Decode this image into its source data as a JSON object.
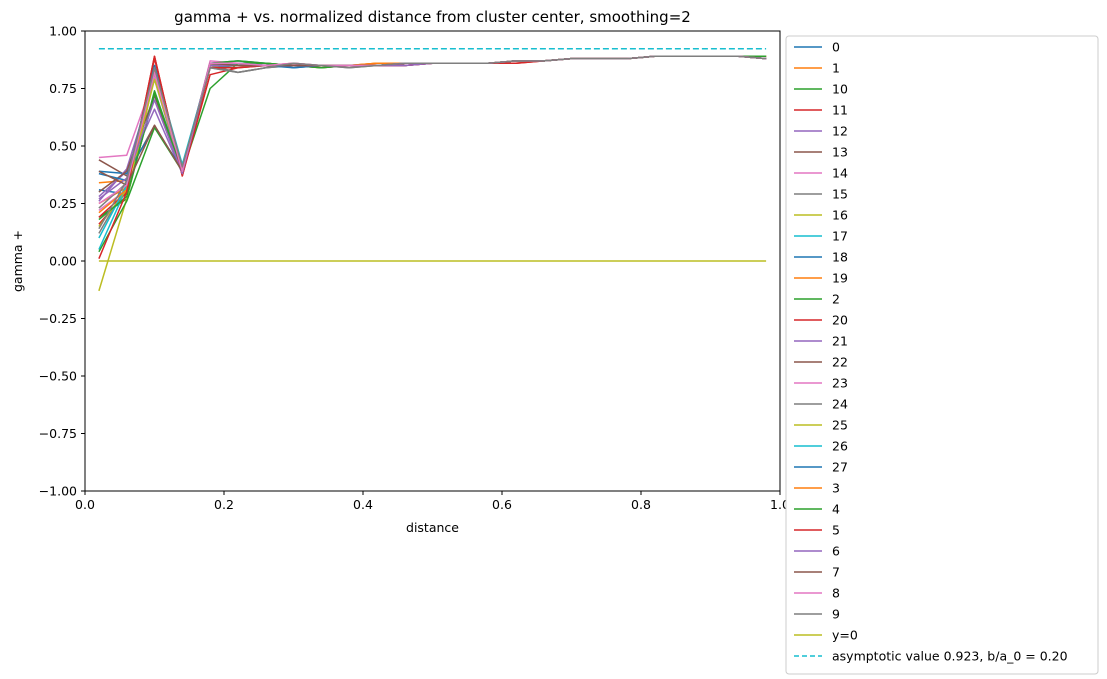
{
  "chart_data": {
    "type": "line",
    "title": "gamma + vs. normalized distance from cluster center, smoothing=2",
    "xlabel": "distance",
    "ylabel": "gamma +",
    "xlim": [
      0,
      1.0
    ],
    "ylim": [
      -1.0,
      1.0
    ],
    "xticks": [
      "0.0",
      "0.2",
      "0.4",
      "0.6",
      "0.8",
      "1.0"
    ],
    "yticks": [
      "−1.00",
      "−0.75",
      "−0.50",
      "−0.25",
      "0.00",
      "0.25",
      "0.50",
      "0.75",
      "1.00"
    ],
    "legend_position": "outside-right",
    "x": [
      0.02,
      0.06,
      0.1,
      0.14,
      0.18,
      0.22,
      0.26,
      0.3,
      0.34,
      0.38,
      0.42,
      0.46,
      0.5,
      0.54,
      0.58,
      0.62,
      0.66,
      0.7,
      0.74,
      0.78,
      0.82,
      0.86,
      0.9,
      0.94,
      0.98
    ],
    "series": [
      {
        "name": "0",
        "color": "#1f77b4",
        "values": [
          0.31,
          0.29,
          0.72,
          0.41,
          0.84,
          0.85,
          0.85,
          0.85,
          0.85,
          0.85,
          0.85,
          0.85,
          0.86,
          0.86,
          0.86,
          0.87,
          0.87,
          0.88,
          0.88,
          0.88,
          0.89,
          0.89,
          0.89,
          0.89,
          0.88
        ]
      },
      {
        "name": "1",
        "color": "#ff7f0e",
        "values": [
          0.34,
          0.35,
          0.82,
          0.4,
          0.86,
          0.85,
          0.85,
          0.85,
          0.84,
          0.85,
          0.86,
          0.86,
          0.86,
          0.86,
          0.86,
          0.87,
          0.87,
          0.88,
          0.88,
          0.88,
          0.89,
          0.89,
          0.89,
          0.89,
          0.89
        ]
      },
      {
        "name": "10",
        "color": "#2ca02c",
        "values": [
          0.19,
          0.27,
          0.74,
          0.39,
          0.85,
          0.86,
          0.86,
          0.85,
          0.84,
          0.85,
          0.85,
          0.86,
          0.86,
          0.86,
          0.86,
          0.87,
          0.87,
          0.88,
          0.88,
          0.88,
          0.89,
          0.89,
          0.89,
          0.89,
          0.89
        ]
      },
      {
        "name": "11",
        "color": "#d62728",
        "values": [
          0.16,
          0.3,
          0.88,
          0.38,
          0.86,
          0.85,
          0.85,
          0.86,
          0.85,
          0.85,
          0.85,
          0.86,
          0.86,
          0.86,
          0.86,
          0.87,
          0.87,
          0.88,
          0.88,
          0.88,
          0.89,
          0.89,
          0.89,
          0.89,
          0.88
        ]
      },
      {
        "name": "12",
        "color": "#9467bd",
        "values": [
          0.28,
          0.39,
          0.66,
          0.38,
          0.85,
          0.85,
          0.86,
          0.85,
          0.85,
          0.85,
          0.85,
          0.85,
          0.86,
          0.86,
          0.86,
          0.87,
          0.87,
          0.88,
          0.88,
          0.88,
          0.89,
          0.89,
          0.89,
          0.89,
          0.88
        ]
      },
      {
        "name": "13",
        "color": "#8c564b",
        "values": [
          0.44,
          0.37,
          0.59,
          0.39,
          0.85,
          0.86,
          0.85,
          0.85,
          0.85,
          0.85,
          0.85,
          0.86,
          0.86,
          0.86,
          0.86,
          0.87,
          0.87,
          0.88,
          0.88,
          0.88,
          0.89,
          0.89,
          0.89,
          0.89,
          0.88
        ]
      },
      {
        "name": "14",
        "color": "#e377c2",
        "values": [
          0.22,
          0.31,
          0.84,
          0.39,
          0.86,
          0.85,
          0.85,
          0.85,
          0.85,
          0.85,
          0.85,
          0.86,
          0.86,
          0.86,
          0.86,
          0.87,
          0.87,
          0.88,
          0.88,
          0.88,
          0.89,
          0.89,
          0.89,
          0.89,
          0.88
        ]
      },
      {
        "name": "15",
        "color": "#7f7f7f",
        "values": [
          0.12,
          0.33,
          0.85,
          0.4,
          0.84,
          0.82,
          0.84,
          0.85,
          0.85,
          0.85,
          0.85,
          0.86,
          0.86,
          0.86,
          0.86,
          0.87,
          0.87,
          0.88,
          0.88,
          0.88,
          0.89,
          0.89,
          0.89,
          0.89,
          0.88
        ]
      },
      {
        "name": "16",
        "color": "#bcbd22",
        "values": [
          -0.13,
          0.27,
          0.8,
          0.4,
          0.86,
          0.86,
          0.86,
          0.85,
          0.85,
          0.85,
          0.85,
          0.86,
          0.86,
          0.86,
          0.86,
          0.87,
          0.87,
          0.88,
          0.88,
          0.88,
          0.89,
          0.89,
          0.89,
          0.89,
          0.88
        ]
      },
      {
        "name": "17",
        "color": "#17becf",
        "values": [
          0.05,
          0.32,
          0.82,
          0.41,
          0.85,
          0.86,
          0.85,
          0.85,
          0.85,
          0.85,
          0.85,
          0.86,
          0.86,
          0.86,
          0.86,
          0.87,
          0.87,
          0.88,
          0.88,
          0.88,
          0.89,
          0.89,
          0.89,
          0.89,
          0.88
        ]
      },
      {
        "name": "18",
        "color": "#1f77b4",
        "values": [
          0.39,
          0.38,
          0.58,
          0.4,
          0.86,
          0.87,
          0.86,
          0.84,
          0.85,
          0.85,
          0.85,
          0.86,
          0.86,
          0.86,
          0.86,
          0.87,
          0.87,
          0.88,
          0.88,
          0.88,
          0.89,
          0.89,
          0.89,
          0.89,
          0.88
        ]
      },
      {
        "name": "19",
        "color": "#ff7f0e",
        "values": [
          0.25,
          0.32,
          0.8,
          0.39,
          0.85,
          0.85,
          0.85,
          0.85,
          0.85,
          0.85,
          0.86,
          0.86,
          0.86,
          0.86,
          0.86,
          0.87,
          0.87,
          0.88,
          0.88,
          0.88,
          0.89,
          0.89,
          0.89,
          0.89,
          0.89
        ]
      },
      {
        "name": "2",
        "color": "#2ca02c",
        "values": [
          0.04,
          0.26,
          0.58,
          0.39,
          0.75,
          0.86,
          0.86,
          0.85,
          0.84,
          0.85,
          0.85,
          0.86,
          0.86,
          0.86,
          0.86,
          0.87,
          0.87,
          0.88,
          0.88,
          0.88,
          0.89,
          0.89,
          0.89,
          0.89,
          0.89
        ]
      },
      {
        "name": "20",
        "color": "#d62728",
        "values": [
          0.19,
          0.3,
          0.89,
          0.37,
          0.81,
          0.84,
          0.85,
          0.85,
          0.85,
          0.85,
          0.85,
          0.85,
          0.86,
          0.86,
          0.86,
          0.86,
          0.87,
          0.88,
          0.88,
          0.88,
          0.89,
          0.89,
          0.89,
          0.89,
          0.88
        ]
      },
      {
        "name": "21",
        "color": "#9467bd",
        "values": [
          0.26,
          0.4,
          0.79,
          0.38,
          0.85,
          0.85,
          0.85,
          0.85,
          0.85,
          0.85,
          0.85,
          0.85,
          0.86,
          0.86,
          0.86,
          0.87,
          0.87,
          0.88,
          0.88,
          0.88,
          0.89,
          0.89,
          0.89,
          0.89,
          0.88
        ]
      },
      {
        "name": "22",
        "color": "#8c564b",
        "values": [
          0.3,
          0.39,
          0.72,
          0.38,
          0.86,
          0.85,
          0.85,
          0.85,
          0.85,
          0.85,
          0.85,
          0.86,
          0.86,
          0.86,
          0.86,
          0.87,
          0.87,
          0.88,
          0.88,
          0.88,
          0.89,
          0.89,
          0.89,
          0.89,
          0.88
        ]
      },
      {
        "name": "23",
        "color": "#e377c2",
        "values": [
          0.45,
          0.46,
          0.8,
          0.39,
          0.87,
          0.86,
          0.85,
          0.86,
          0.85,
          0.85,
          0.85,
          0.86,
          0.86,
          0.86,
          0.86,
          0.87,
          0.87,
          0.88,
          0.88,
          0.88,
          0.89,
          0.89,
          0.89,
          0.89,
          0.88
        ]
      },
      {
        "name": "24",
        "color": "#7f7f7f",
        "values": [
          0.23,
          0.34,
          0.82,
          0.41,
          0.85,
          0.82,
          0.84,
          0.85,
          0.85,
          0.84,
          0.85,
          0.86,
          0.86,
          0.86,
          0.86,
          0.87,
          0.87,
          0.88,
          0.88,
          0.88,
          0.89,
          0.89,
          0.89,
          0.89,
          0.88
        ]
      },
      {
        "name": "25",
        "color": "#bcbd22",
        "values": [
          0.15,
          0.31,
          0.79,
          0.4,
          0.85,
          0.85,
          0.85,
          0.85,
          0.85,
          0.85,
          0.85,
          0.86,
          0.86,
          0.86,
          0.86,
          0.87,
          0.87,
          0.88,
          0.88,
          0.88,
          0.89,
          0.89,
          0.89,
          0.89,
          0.88
        ]
      },
      {
        "name": "26",
        "color": "#17becf",
        "values": [
          0.1,
          0.33,
          0.84,
          0.42,
          0.85,
          0.86,
          0.85,
          0.85,
          0.85,
          0.85,
          0.85,
          0.86,
          0.86,
          0.86,
          0.86,
          0.87,
          0.87,
          0.88,
          0.88,
          0.88,
          0.89,
          0.89,
          0.89,
          0.89,
          0.88
        ]
      },
      {
        "name": "27",
        "color": "#1f77b4",
        "values": [
          0.38,
          0.35,
          0.85,
          0.4,
          0.86,
          0.86,
          0.85,
          0.84,
          0.85,
          0.85,
          0.85,
          0.86,
          0.86,
          0.86,
          0.86,
          0.87,
          0.87,
          0.88,
          0.88,
          0.88,
          0.89,
          0.89,
          0.89,
          0.89,
          0.88
        ]
      },
      {
        "name": "3",
        "color": "#ff7f0e",
        "values": [
          0.21,
          0.31,
          0.83,
          0.4,
          0.85,
          0.85,
          0.85,
          0.85,
          0.85,
          0.85,
          0.86,
          0.86,
          0.86,
          0.86,
          0.86,
          0.87,
          0.87,
          0.88,
          0.88,
          0.88,
          0.89,
          0.89,
          0.89,
          0.89,
          0.89
        ]
      },
      {
        "name": "4",
        "color": "#2ca02c",
        "values": [
          0.18,
          0.28,
          0.73,
          0.39,
          0.86,
          0.87,
          0.86,
          0.85,
          0.85,
          0.85,
          0.85,
          0.86,
          0.86,
          0.86,
          0.86,
          0.87,
          0.87,
          0.88,
          0.88,
          0.88,
          0.89,
          0.89,
          0.89,
          0.89,
          0.89
        ]
      },
      {
        "name": "5",
        "color": "#d62728",
        "values": [
          0.01,
          0.3,
          0.89,
          0.37,
          0.84,
          0.84,
          0.85,
          0.85,
          0.85,
          0.85,
          0.85,
          0.85,
          0.86,
          0.86,
          0.86,
          0.86,
          0.87,
          0.88,
          0.88,
          0.88,
          0.89,
          0.89,
          0.89,
          0.89,
          0.88
        ]
      },
      {
        "name": "6",
        "color": "#9467bd",
        "values": [
          0.27,
          0.36,
          0.7,
          0.38,
          0.85,
          0.85,
          0.85,
          0.85,
          0.85,
          0.85,
          0.85,
          0.85,
          0.86,
          0.86,
          0.86,
          0.87,
          0.87,
          0.88,
          0.88,
          0.88,
          0.89,
          0.89,
          0.89,
          0.89,
          0.88
        ]
      },
      {
        "name": "7",
        "color": "#8c564b",
        "values": [
          0.39,
          0.33,
          0.59,
          0.39,
          0.86,
          0.85,
          0.85,
          0.85,
          0.85,
          0.85,
          0.85,
          0.86,
          0.86,
          0.86,
          0.86,
          0.87,
          0.87,
          0.88,
          0.88,
          0.88,
          0.89,
          0.89,
          0.89,
          0.89,
          0.88
        ]
      },
      {
        "name": "8",
        "color": "#e377c2",
        "values": [
          0.25,
          0.33,
          0.82,
          0.39,
          0.86,
          0.86,
          0.85,
          0.86,
          0.85,
          0.85,
          0.85,
          0.86,
          0.86,
          0.86,
          0.86,
          0.87,
          0.87,
          0.88,
          0.88,
          0.88,
          0.89,
          0.89,
          0.89,
          0.89,
          0.88
        ]
      },
      {
        "name": "9",
        "color": "#7f7f7f",
        "values": [
          0.14,
          0.35,
          0.84,
          0.41,
          0.84,
          0.82,
          0.84,
          0.86,
          0.85,
          0.84,
          0.85,
          0.86,
          0.86,
          0.86,
          0.86,
          0.87,
          0.87,
          0.88,
          0.88,
          0.88,
          0.89,
          0.89,
          0.89,
          0.89,
          0.88
        ]
      }
    ],
    "reference_lines": [
      {
        "name": "y=0",
        "color": "#bcbd22",
        "style": "solid",
        "y": 0.0,
        "x_range": [
          0.02,
          0.98
        ]
      },
      {
        "name": "asymptotic value 0.923, b/a_0 = 0.20",
        "color": "#17becf",
        "style": "dashed",
        "y": 0.923,
        "x_range": [
          0.02,
          0.98
        ]
      }
    ]
  }
}
